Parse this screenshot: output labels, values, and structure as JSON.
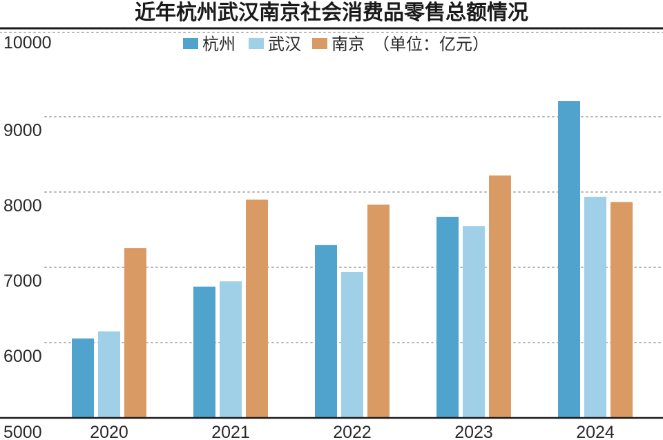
{
  "chart_data": {
    "type": "bar",
    "title": "近年杭州武汉南京社会消费品零售总额情况",
    "unit_note": "（单位：亿元）",
    "xlabel": "",
    "ylabel": "",
    "categories": [
      "2020",
      "2021",
      "2022",
      "2023",
      "2024"
    ],
    "ylim": [
      5000,
      10000
    ],
    "yticks": [
      5000,
      6000,
      7000,
      8000,
      9000,
      10000
    ],
    "grid": true,
    "legend_position": "top-center",
    "series": [
      {
        "name": "杭州",
        "color": "#4fa3cc",
        "values": [
          6054,
          6744,
          7295,
          7671,
          9210
        ]
      },
      {
        "name": "武汉",
        "color": "#9fd0e8",
        "values": [
          6150,
          6814,
          6936,
          7549,
          7937
        ]
      },
      {
        "name": "南京",
        "color": "#d99a63",
        "values": [
          7256,
          7900,
          7832,
          8219,
          7867
        ]
      }
    ]
  }
}
